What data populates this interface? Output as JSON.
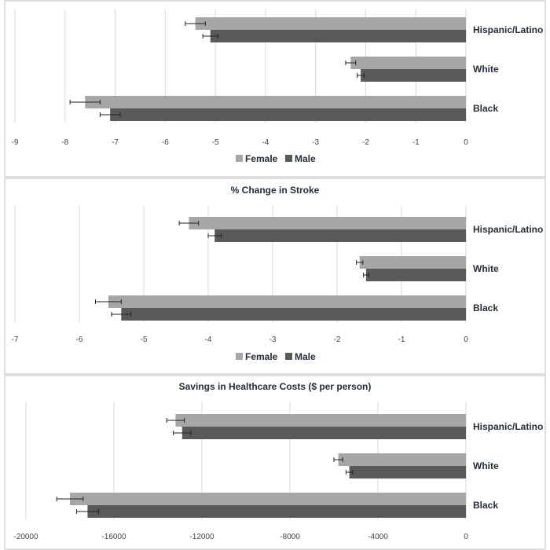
{
  "colors": {
    "female": "#a6a6a6",
    "male": "#595959",
    "grid": "#d9d9d9",
    "frame": "#bfbfbf",
    "errorbar": "#222222"
  },
  "chart_data": [
    {
      "type": "bar",
      "orientation": "horizontal",
      "title": "",
      "categories": [
        "Hispanic/Latino",
        "White",
        "Black"
      ],
      "series": [
        {
          "name": "Female",
          "values": [
            -5.4,
            -2.3,
            -7.6
          ],
          "error": [
            0.2,
            0.1,
            0.3
          ]
        },
        {
          "name": "Male",
          "values": [
            -5.1,
            -2.1,
            -7.1
          ],
          "error": [
            0.15,
            0.07,
            0.2
          ]
        }
      ],
      "xlim": [
        -9,
        0
      ],
      "xticks": [
        -9,
        -8,
        -7,
        -6,
        -5,
        -4,
        -3,
        -2,
        -1,
        0
      ],
      "legend": "bottom",
      "grid": true
    },
    {
      "type": "bar",
      "orientation": "horizontal",
      "title": "% Change in Stroke",
      "categories": [
        "Hispanic/Latino",
        "White",
        "Black"
      ],
      "series": [
        {
          "name": "Female",
          "values": [
            -4.3,
            -1.65,
            -5.55
          ],
          "error": [
            0.15,
            0.05,
            0.2
          ]
        },
        {
          "name": "Male",
          "values": [
            -3.9,
            -1.55,
            -5.35
          ],
          "error": [
            0.1,
            0.04,
            0.15
          ]
        }
      ],
      "xlim": [
        -7,
        0
      ],
      "xticks": [
        -7,
        -6,
        -5,
        -4,
        -3,
        -2,
        -1,
        0
      ],
      "legend": "bottom",
      "grid": true
    },
    {
      "type": "bar",
      "orientation": "horizontal",
      "title": "Savings in Healthcare Costs ($ per person)",
      "categories": [
        "Hispanic/Latino",
        "White",
        "Black"
      ],
      "series": [
        {
          "name": "Female",
          "values": [
            -13200,
            -5800,
            -18000
          ],
          "error": [
            400,
            200,
            600
          ]
        },
        {
          "name": "Male",
          "values": [
            -12900,
            -5300,
            -17200
          ],
          "error": [
            400,
            150,
            500
          ]
        }
      ],
      "xlim": [
        -20000,
        0
      ],
      "xticks": [
        -20000,
        -16000,
        -12000,
        -8000,
        -4000,
        0
      ],
      "legend": "bottom",
      "grid": true
    }
  ]
}
